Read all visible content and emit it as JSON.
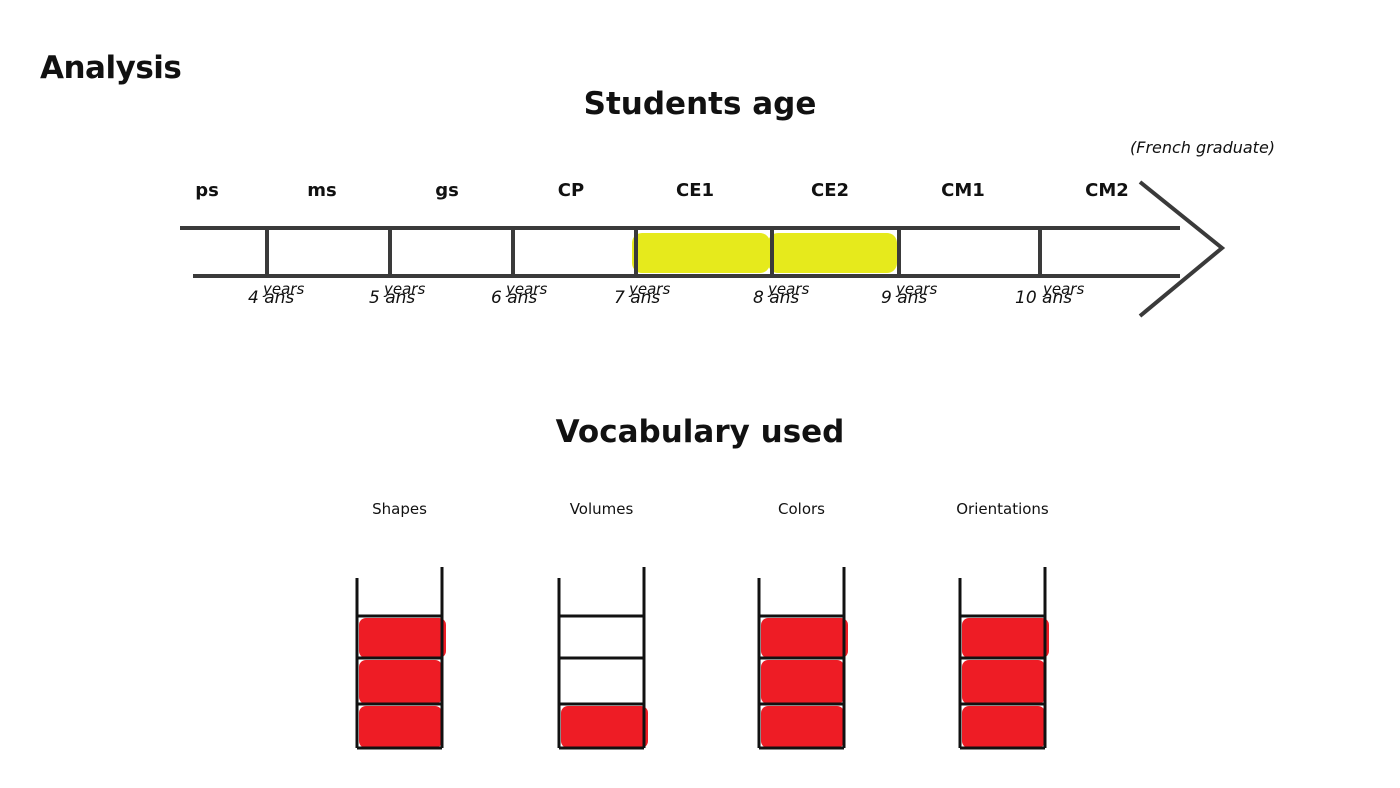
{
  "page": {
    "title": "Analysis",
    "students_heading": "Students age",
    "note": "(French graduate)",
    "vocab_heading": "Vocabulary used"
  },
  "timeline": {
    "grades": [
      "ps",
      "ms",
      "gs",
      "CP",
      "CE1",
      "CE2",
      "CM1",
      "CM2"
    ],
    "ages": [
      {
        "ans": "4 ans",
        "years": "years"
      },
      {
        "ans": "5 ans",
        "years": "years"
      },
      {
        "ans": "6 ans",
        "years": "years"
      },
      {
        "ans": "7 ans",
        "years": "years"
      },
      {
        "ans": "8 ans",
        "years": "years"
      },
      {
        "ans": "9 ans",
        "years": "years"
      },
      {
        "ans": "10 ans",
        "years": "years"
      }
    ],
    "highlighted_grades": [
      "CE1",
      "CE2"
    ],
    "highlight_color": "#e6ea1c"
  },
  "vocabulary": {
    "fill_color": "#ee1c25",
    "levels_total": 3,
    "items": [
      {
        "label": "Shapes",
        "filled": 3
      },
      {
        "label": "Volumes",
        "filled": 1
      },
      {
        "label": "Colors",
        "filled": 3
      },
      {
        "label": "Orientations",
        "filled": 3
      }
    ]
  }
}
